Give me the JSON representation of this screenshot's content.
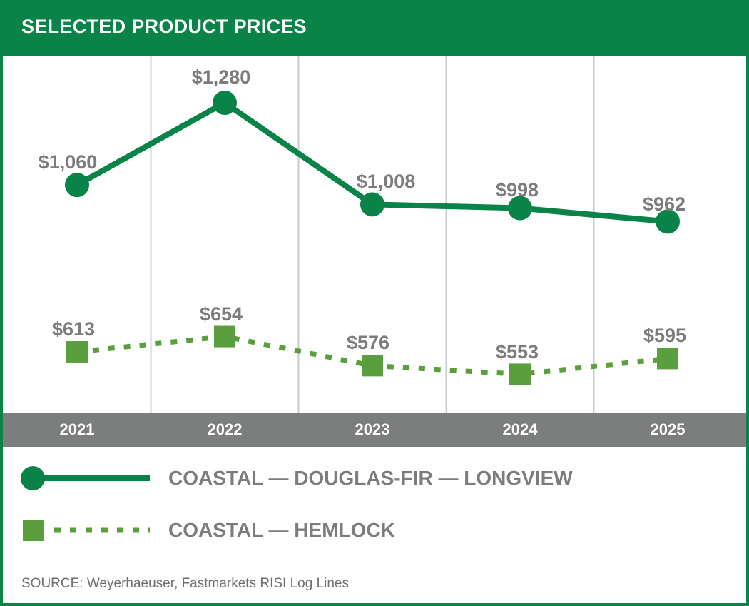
{
  "title": "SELECTED PRODUCT PRICES",
  "source": "SOURCE: Weyerhaeuser, Fastmarkets RISI Log Lines",
  "colors": {
    "brand_green": "#0a8348",
    "hemlock_green": "#5b9e3d",
    "axis_band": "#7c7e7d",
    "label_gray": "#7b7d7c",
    "grid": "#c9cbca"
  },
  "legend": [
    {
      "label": "COASTAL — DOUGLAS-FIR — LONGVIEW",
      "marker": "circle",
      "line": "solid"
    },
    {
      "label": "COASTAL — HEMLOCK",
      "marker": "square",
      "line": "dotted"
    }
  ],
  "chart_data": {
    "type": "line",
    "title": "SELECTED PRODUCT PRICES",
    "xlabel": "",
    "ylabel": "",
    "grid": "vertical",
    "categories": [
      "2021",
      "2022",
      "2023",
      "2024",
      "2025"
    ],
    "series": [
      {
        "name": "COASTAL — DOUGLAS-FIR — LONGVIEW",
        "values": [
          1060,
          1280,
          1008,
          998,
          962
        ],
        "labels": [
          "$1,060",
          "$1,280",
          "$1,008",
          "$998",
          "$962"
        ],
        "color": "#0a8348",
        "marker": "circle",
        "line": "solid"
      },
      {
        "name": "COASTAL — HEMLOCK",
        "values": [
          613,
          654,
          576,
          553,
          595
        ],
        "labels": [
          "$613",
          "$654",
          "$576",
          "$553",
          "$595"
        ],
        "color": "#5b9e3d",
        "marker": "square",
        "line": "dotted"
      }
    ]
  }
}
